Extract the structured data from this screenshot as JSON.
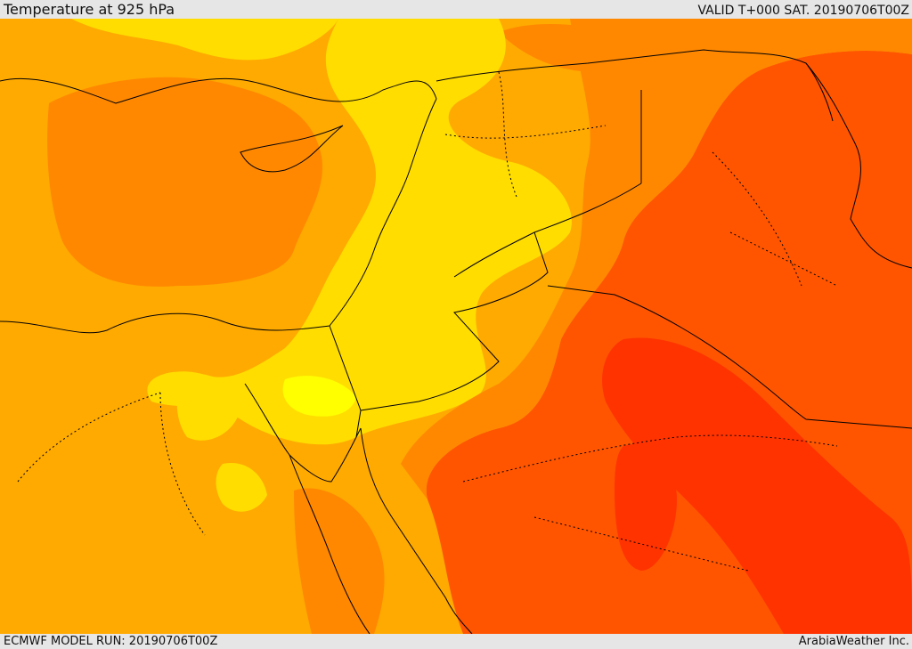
{
  "header": {
    "title": "Temperature at 925 hPa",
    "valid_time": "VALID T+000 SAT. 20190706T00Z"
  },
  "footer": {
    "model_run": "ECMWF MODEL RUN: 20190706T00Z",
    "credit": "ArabiaWeather Inc."
  },
  "map": {
    "variable": "temperature",
    "level_hpa": 925,
    "colors": {
      "bright_yellow": "#ffff00",
      "yellow": "#ffdd00",
      "light_orange": "#ffaa00",
      "orange": "#ff8800",
      "dark_orange": "#ff5500",
      "red_orange": "#ff3300",
      "boundary_line": "#000000"
    }
  }
}
